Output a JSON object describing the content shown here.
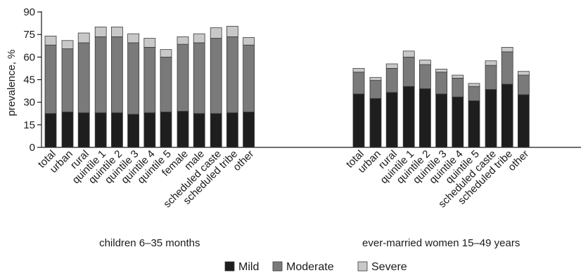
{
  "chart_data": {
    "type": "bar",
    "stacked": true,
    "ylabel": "prevalence, %",
    "ylim": [
      0,
      90
    ],
    "yticks": [
      0,
      15,
      30,
      45,
      60,
      75,
      90
    ],
    "grid": false,
    "legend_position": "bottom-center",
    "series": [
      {
        "name": "Mild",
        "color": "#1e1e1e"
      },
      {
        "name": "Moderate",
        "color": "#7a7a7a"
      },
      {
        "name": "Severe",
        "color": "#c8c8c8"
      }
    ],
    "groups": [
      {
        "label": "children 6–35 months",
        "categories": [
          "total",
          "urban",
          "rural",
          "quintile 1",
          "quintile 2",
          "quintile 3",
          "quintile 4",
          "quintile 5",
          "female",
          "male",
          "scheduled caste",
          "scheduled tribe",
          "other"
        ],
        "clusters": [
          1,
          2,
          5,
          2,
          3
        ],
        "Mild": [
          22.5,
          23.5,
          23,
          23,
          23,
          22,
          23,
          23.5,
          24,
          22.5,
          22.5,
          23,
          23.5
        ],
        "Moderate": [
          45.5,
          42,
          46.5,
          50.5,
          50.5,
          47.5,
          43.5,
          36.5,
          44.5,
          47,
          50,
          50.5,
          44.5
        ],
        "Severe": [
          6,
          5.5,
          6.5,
          6.5,
          6.5,
          6,
          6,
          5,
          5,
          6,
          7,
          7,
          5
        ]
      },
      {
        "label": "ever-married women 15–49 years",
        "categories": [
          "total",
          "urban",
          "rural",
          "quintile 1",
          "quintile 2",
          "quintile 3",
          "quintile 4",
          "quintile 5",
          "scheduled caste",
          "scheduled tribe",
          "other"
        ],
        "clusters": [
          1,
          2,
          5,
          3
        ],
        "Mild": [
          35.5,
          32.5,
          36.5,
          40.5,
          39,
          35.5,
          33.5,
          31,
          38.5,
          42,
          35
        ],
        "Moderate": [
          14.5,
          12,
          16,
          19.5,
          16,
          14.5,
          12.5,
          9.5,
          16,
          21.5,
          13
        ],
        "Severe": [
          2.5,
          2,
          3,
          4,
          3,
          2,
          2,
          2,
          3,
          3,
          2.5
        ]
      }
    ]
  }
}
